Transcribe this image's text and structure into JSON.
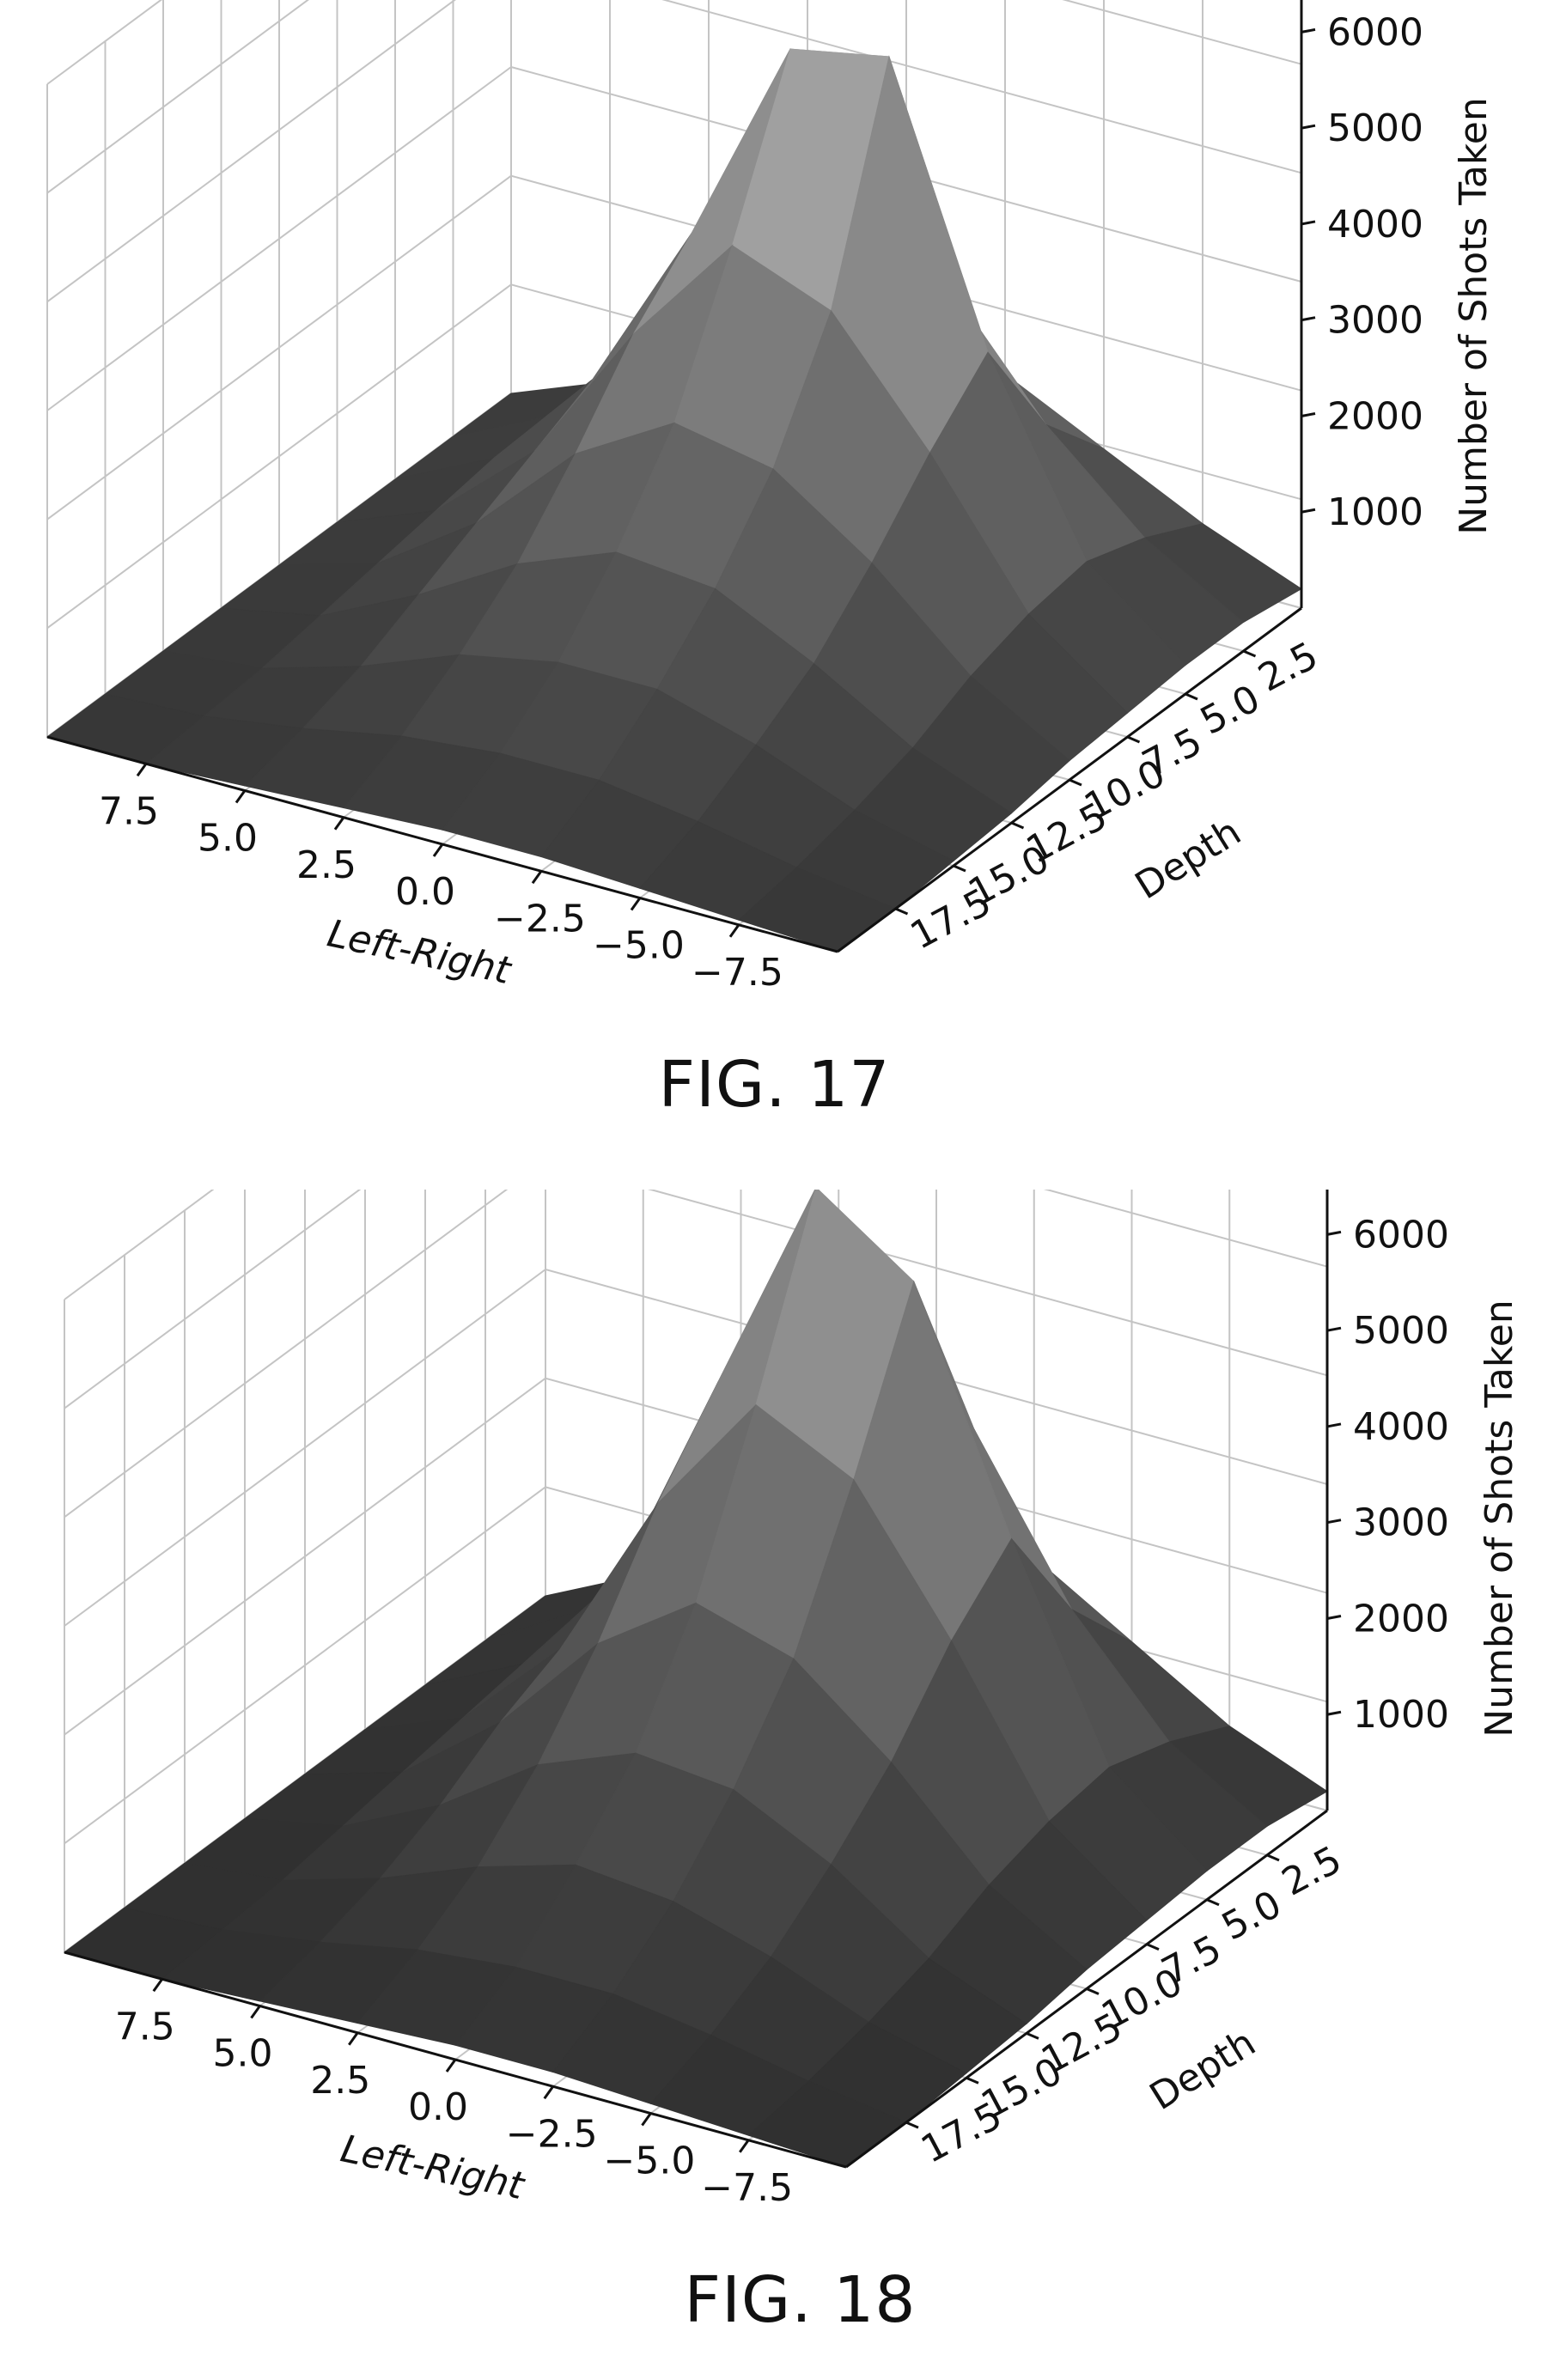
{
  "figures": [
    {
      "caption": "FIG. 17",
      "chart_data": {
        "type": "surface3d",
        "title": "",
        "xlabel": "Left-Right",
        "ylabel": "Depth",
        "zlabel": "Number of Shots Taken",
        "x_ticks": [
          "7.5",
          "5.0",
          "2.5",
          "0.0",
          "−2.5",
          "−5.0",
          "−7.5"
        ],
        "y_ticks": [
          "2.5",
          "5.0",
          "7.5",
          "10.0",
          "12.5",
          "15.0",
          "17.5"
        ],
        "z_ticks": [
          "1000",
          "2000",
          "3000",
          "4000",
          "5000",
          "6000"
        ],
        "xlim": [
          -10,
          10
        ],
        "ylim": [
          0,
          20
        ],
        "zlim": [
          0,
          6800
        ],
        "x": [
          10,
          7.5,
          5,
          2.5,
          0,
          -2.5,
          -5,
          -7.5,
          -10
        ],
        "y": [
          0,
          2.5,
          5,
          7.5,
          10,
          12.5,
          15,
          17.5,
          20
        ],
        "z": [
          [
            0,
            400,
            900,
            1500,
            1900,
            1600,
            1100,
            600,
            200
          ],
          [
            0,
            500,
            1400,
            2600,
            3500,
            3000,
            1800,
            900,
            300
          ],
          [
            0,
            500,
            1600,
            3400,
            5600,
            5800,
            3000,
            1100,
            300
          ],
          [
            0,
            400,
            1300,
            2800,
            4000,
            3600,
            2400,
            1000,
            250
          ],
          [
            0,
            300,
            1000,
            2000,
            2600,
            2400,
            1700,
            800,
            200
          ],
          [
            0,
            200,
            700,
            1300,
            1700,
            1600,
            1100,
            500,
            100
          ],
          [
            0,
            100,
            400,
            800,
            1000,
            1000,
            700,
            300,
            50
          ],
          [
            0,
            50,
            200,
            400,
            500,
            500,
            350,
            150,
            0
          ],
          [
            0,
            0,
            50,
            100,
            150,
            150,
            100,
            50,
            0
          ]
        ],
        "surface_color": "#5a5a5a",
        "grid": true
      }
    },
    {
      "caption": "FIG. 18",
      "chart_data": {
        "type": "surface3d",
        "title": "",
        "xlabel": "Left-Right",
        "ylabel": "Depth",
        "zlabel": "Number of Shots Taken",
        "x_ticks": [
          "7.5",
          "5.0",
          "2.5",
          "0.0",
          "−2.5",
          "−5.0",
          "−7.5"
        ],
        "y_ticks": [
          "2.5",
          "5.0",
          "7.5",
          "10.0",
          "12.5",
          "15.0",
          "17.5"
        ],
        "z_ticks": [
          "1000",
          "2000",
          "3000",
          "4000",
          "5000",
          "6000"
        ],
        "xlim": [
          -10,
          10
        ],
        "ylim": [
          0,
          20
        ],
        "zlim": [
          0,
          6800
        ],
        "x": [
          10,
          7.5,
          5,
          2.5,
          0,
          -2.5,
          -5,
          -7.5,
          -10
        ],
        "y": [
          0,
          2.5,
          5,
          7.5,
          10,
          12.5,
          15,
          17.5,
          20
        ],
        "z": [
          [
            0,
            500,
            1000,
            1600,
            2000,
            1800,
            1200,
            600,
            200
          ],
          [
            0,
            600,
            1600,
            3000,
            4200,
            3600,
            2000,
            900,
            300
          ],
          [
            0,
            500,
            1700,
            4000,
            6300,
            5600,
            3200,
            1100,
            300
          ],
          [
            0,
            400,
            1400,
            3200,
            4500,
            4000,
            2600,
            1000,
            250
          ],
          [
            0,
            300,
            1100,
            2200,
            2900,
            2600,
            1800,
            800,
            200
          ],
          [
            0,
            200,
            700,
            1400,
            1800,
            1700,
            1200,
            500,
            100
          ],
          [
            0,
            100,
            400,
            800,
            1100,
            1000,
            700,
            300,
            50
          ],
          [
            0,
            50,
            200,
            400,
            500,
            500,
            350,
            150,
            0
          ],
          [
            0,
            0,
            50,
            100,
            150,
            150,
            100,
            50,
            0
          ]
        ],
        "surface_color": "#6a6a6a",
        "grid": true
      }
    }
  ]
}
